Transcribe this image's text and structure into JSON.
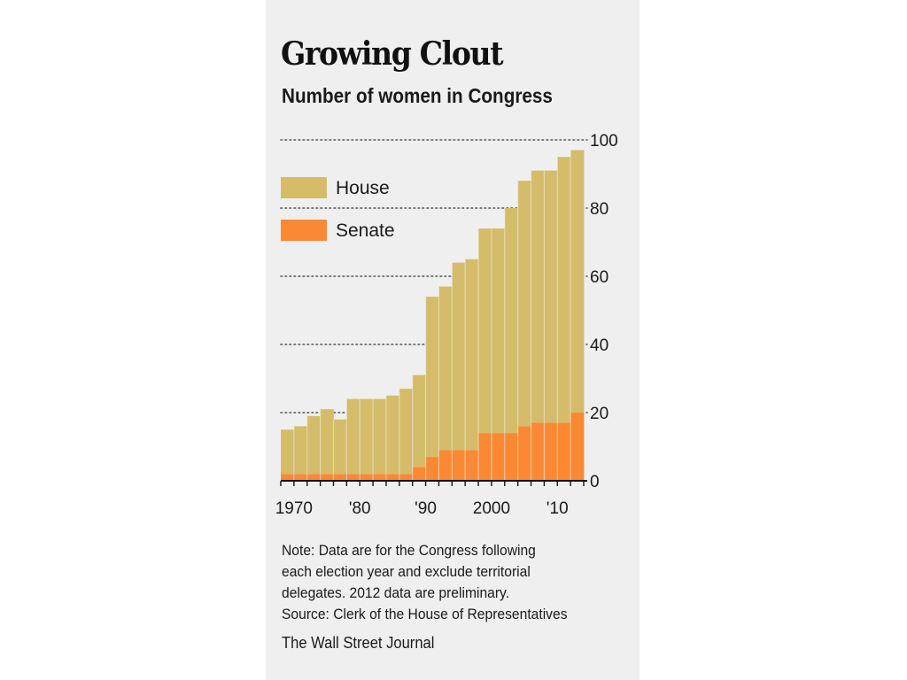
{
  "chart_data": {
    "type": "area",
    "title": "Growing Clout",
    "subtitle": "Number of women in Congress",
    "x": [
      1968,
      1970,
      1972,
      1974,
      1976,
      1978,
      1980,
      1982,
      1984,
      1986,
      1988,
      1990,
      1992,
      1994,
      1996,
      1998,
      2000,
      2002,
      2004,
      2006,
      2008,
      2010,
      2012
    ],
    "series": [
      {
        "name": "House",
        "color": "#d4bc6a",
        "values": [
          13,
          14,
          17,
          19,
          16,
          22,
          22,
          22,
          23,
          25,
          27,
          47,
          48,
          55,
          56,
          60,
          60,
          66,
          72,
          74,
          74,
          78,
          77
        ]
      },
      {
        "name": "Senate",
        "color": "#fb8934",
        "values": [
          2,
          2,
          2,
          2,
          2,
          2,
          2,
          2,
          2,
          2,
          4,
          7,
          9,
          9,
          9,
          14,
          14,
          14,
          16,
          17,
          17,
          17,
          20
        ]
      }
    ],
    "stacked": true,
    "step": true,
    "x_tick_labels": [
      {
        "x": 1970,
        "label": "1970"
      },
      {
        "x": 1980,
        "label": "'80"
      },
      {
        "x": 1990,
        "label": "'90"
      },
      {
        "x": 2000,
        "label": "2000"
      },
      {
        "x": 2010,
        "label": "'10"
      }
    ],
    "y_ticks": [
      0,
      20,
      40,
      60,
      80,
      100
    ],
    "ylim": [
      0,
      100
    ],
    "xlim": [
      1968,
      2014
    ],
    "grid": "dotted-horizontal",
    "legend_position": "top-left",
    "y_axis_side": "right"
  },
  "notes": [
    "Note: Data are for the Congress following",
    "each election year and exclude territorial",
    "delegates. 2012 data are preliminary.",
    "Source: Clerk of the House of Representatives"
  ],
  "credit": "The Wall Street Journal"
}
